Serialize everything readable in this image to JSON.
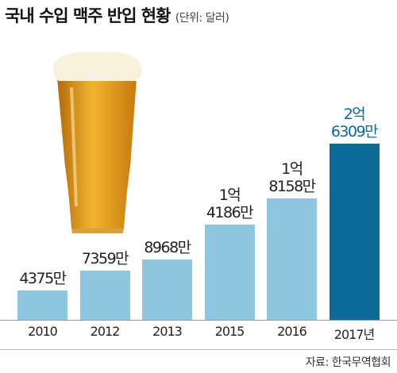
{
  "chart_data": {
    "type": "bar",
    "title": "국내 수입 맥주 반입 현황",
    "subtitle": "(단위: 달러)",
    "source": "자료: 한국무역협회",
    "categories": [
      "2010",
      "2012",
      "2013",
      "2015",
      "2016",
      "2017년"
    ],
    "values": [
      4375,
      7359,
      8968,
      14186,
      18158,
      26309
    ],
    "value_labels": [
      "4375만",
      "7359만",
      "8968만",
      "1억\n4186만",
      "1억\n8158만",
      "2억\n6309만"
    ],
    "colors": [
      "#8ec5df",
      "#8ec5df",
      "#8ec5df",
      "#8ec5df",
      "#8ec5df",
      "#0b6a98"
    ],
    "label_colors": [
      "#222222",
      "#222222",
      "#222222",
      "#222222",
      "#222222",
      "#0b6a98"
    ]
  }
}
